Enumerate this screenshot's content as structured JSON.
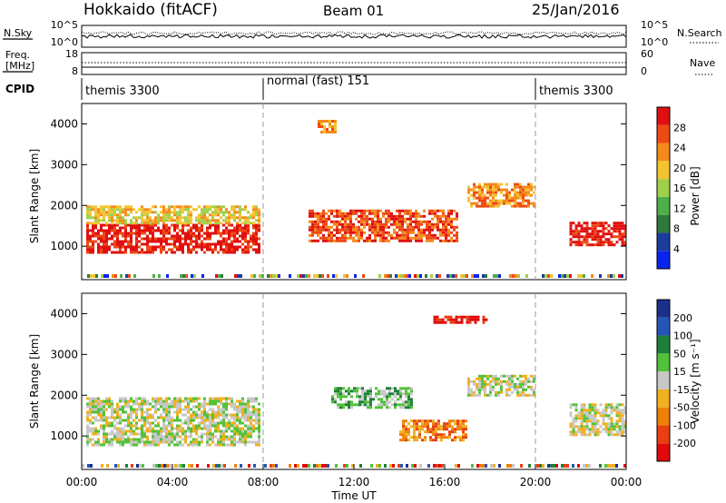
{
  "header": {
    "station": "Hokkaido (fitACF)",
    "beam": "Beam 01",
    "date": "25/Jan/2016"
  },
  "panels": {
    "nsky_label": "N.Sky",
    "nsearch_label": "N.Search",
    "freq_label_1": "Freq.",
    "freq_label_2": "[MHz]",
    "nave_label": "Nave",
    "cpid_label": "CPID",
    "nsky_ticks": [
      "10^5",
      "10^0"
    ],
    "nsearch_ticks": [
      "10^5",
      "10^0"
    ],
    "freq_ticks": [
      "18",
      "8"
    ],
    "nave_ticks": [
      "60",
      "0"
    ],
    "cpid_segments": [
      "themis 3300",
      "normal (fast) 151",
      "themis 3300"
    ]
  },
  "colors": {
    "power_scale": [
      "#0a24f0",
      "#1e3c9c",
      "#2e7a3a",
      "#4fae4a",
      "#9fd04a",
      "#f4c430",
      "#f58a1a",
      "#ee4a14",
      "#e01010"
    ],
    "velocity_scale": [
      "#1b2f8c",
      "#2456b8",
      "#1f7f3a",
      "#52c23a",
      "#c8c8c8",
      "#f0b020",
      "#f0800a",
      "#e84010",
      "#e00a0a"
    ]
  },
  "chart_data": [
    {
      "type": "heatmap",
      "title": "Power",
      "ylabel": "Slant Range [km]",
      "xlabel": "Time UT",
      "xticks": [
        "00:00",
        "04:00",
        "08:00",
        "12:00",
        "16:00",
        "20:00",
        "00:00"
      ],
      "yticks": [
        "1000",
        "2000",
        "3000",
        "4000"
      ],
      "ylim": [
        180,
        4500
      ],
      "colorbar": {
        "label": "Power [dB]",
        "ticks": [
          "4",
          "8",
          "12",
          "16",
          "20",
          "24",
          "28"
        ]
      },
      "echo_regions": [
        {
          "t": [
            0.2,
            7.8
          ],
          "r": [
            850,
            1550
          ],
          "level": 8
        },
        {
          "t": [
            0.2,
            7.8
          ],
          "r": [
            1550,
            2000
          ],
          "level": 5
        },
        {
          "t": [
            10.0,
            16.5
          ],
          "r": [
            1100,
            1900
          ],
          "level": 7
        },
        {
          "t": [
            17.0,
            20.0
          ],
          "r": [
            1950,
            2550
          ],
          "level": 6
        },
        {
          "t": [
            21.5,
            24.0
          ],
          "r": [
            1000,
            1600
          ],
          "level": 8
        },
        {
          "t": [
            10.4,
            11.2
          ],
          "r": [
            3800,
            4100
          ],
          "level": 6
        }
      ]
    },
    {
      "type": "heatmap",
      "title": "Velocity",
      "ylabel": "Slant Range [km]",
      "xlabel": "Time UT",
      "xticks": [
        "00:00",
        "04:00",
        "08:00",
        "12:00",
        "16:00",
        "20:00",
        "00:00"
      ],
      "yticks": [
        "1000",
        "2000",
        "3000",
        "4000"
      ],
      "ylim": [
        180,
        4500
      ],
      "colorbar": {
        "label": "Velocity [m s⁻¹]",
        "ticks": [
          "200",
          "100",
          "50",
          "15",
          "-15",
          "-50",
          "-100",
          "-200"
        ]
      },
      "echo_regions": [
        {
          "t": [
            0.2,
            7.8
          ],
          "r": [
            800,
            1950
          ],
          "level": 4
        },
        {
          "t": [
            11.0,
            14.5
          ],
          "r": [
            1700,
            2200
          ],
          "level": 3
        },
        {
          "t": [
            14.0,
            17.0
          ],
          "r": [
            900,
            1400
          ],
          "level": 6
        },
        {
          "t": [
            17.0,
            20.0
          ],
          "r": [
            2000,
            2500
          ],
          "level": 4
        },
        {
          "t": [
            15.5,
            17.8
          ],
          "r": [
            3750,
            3950
          ],
          "level": 8
        },
        {
          "t": [
            21.5,
            24.0
          ],
          "r": [
            1000,
            1800
          ],
          "level": 4
        }
      ]
    }
  ]
}
